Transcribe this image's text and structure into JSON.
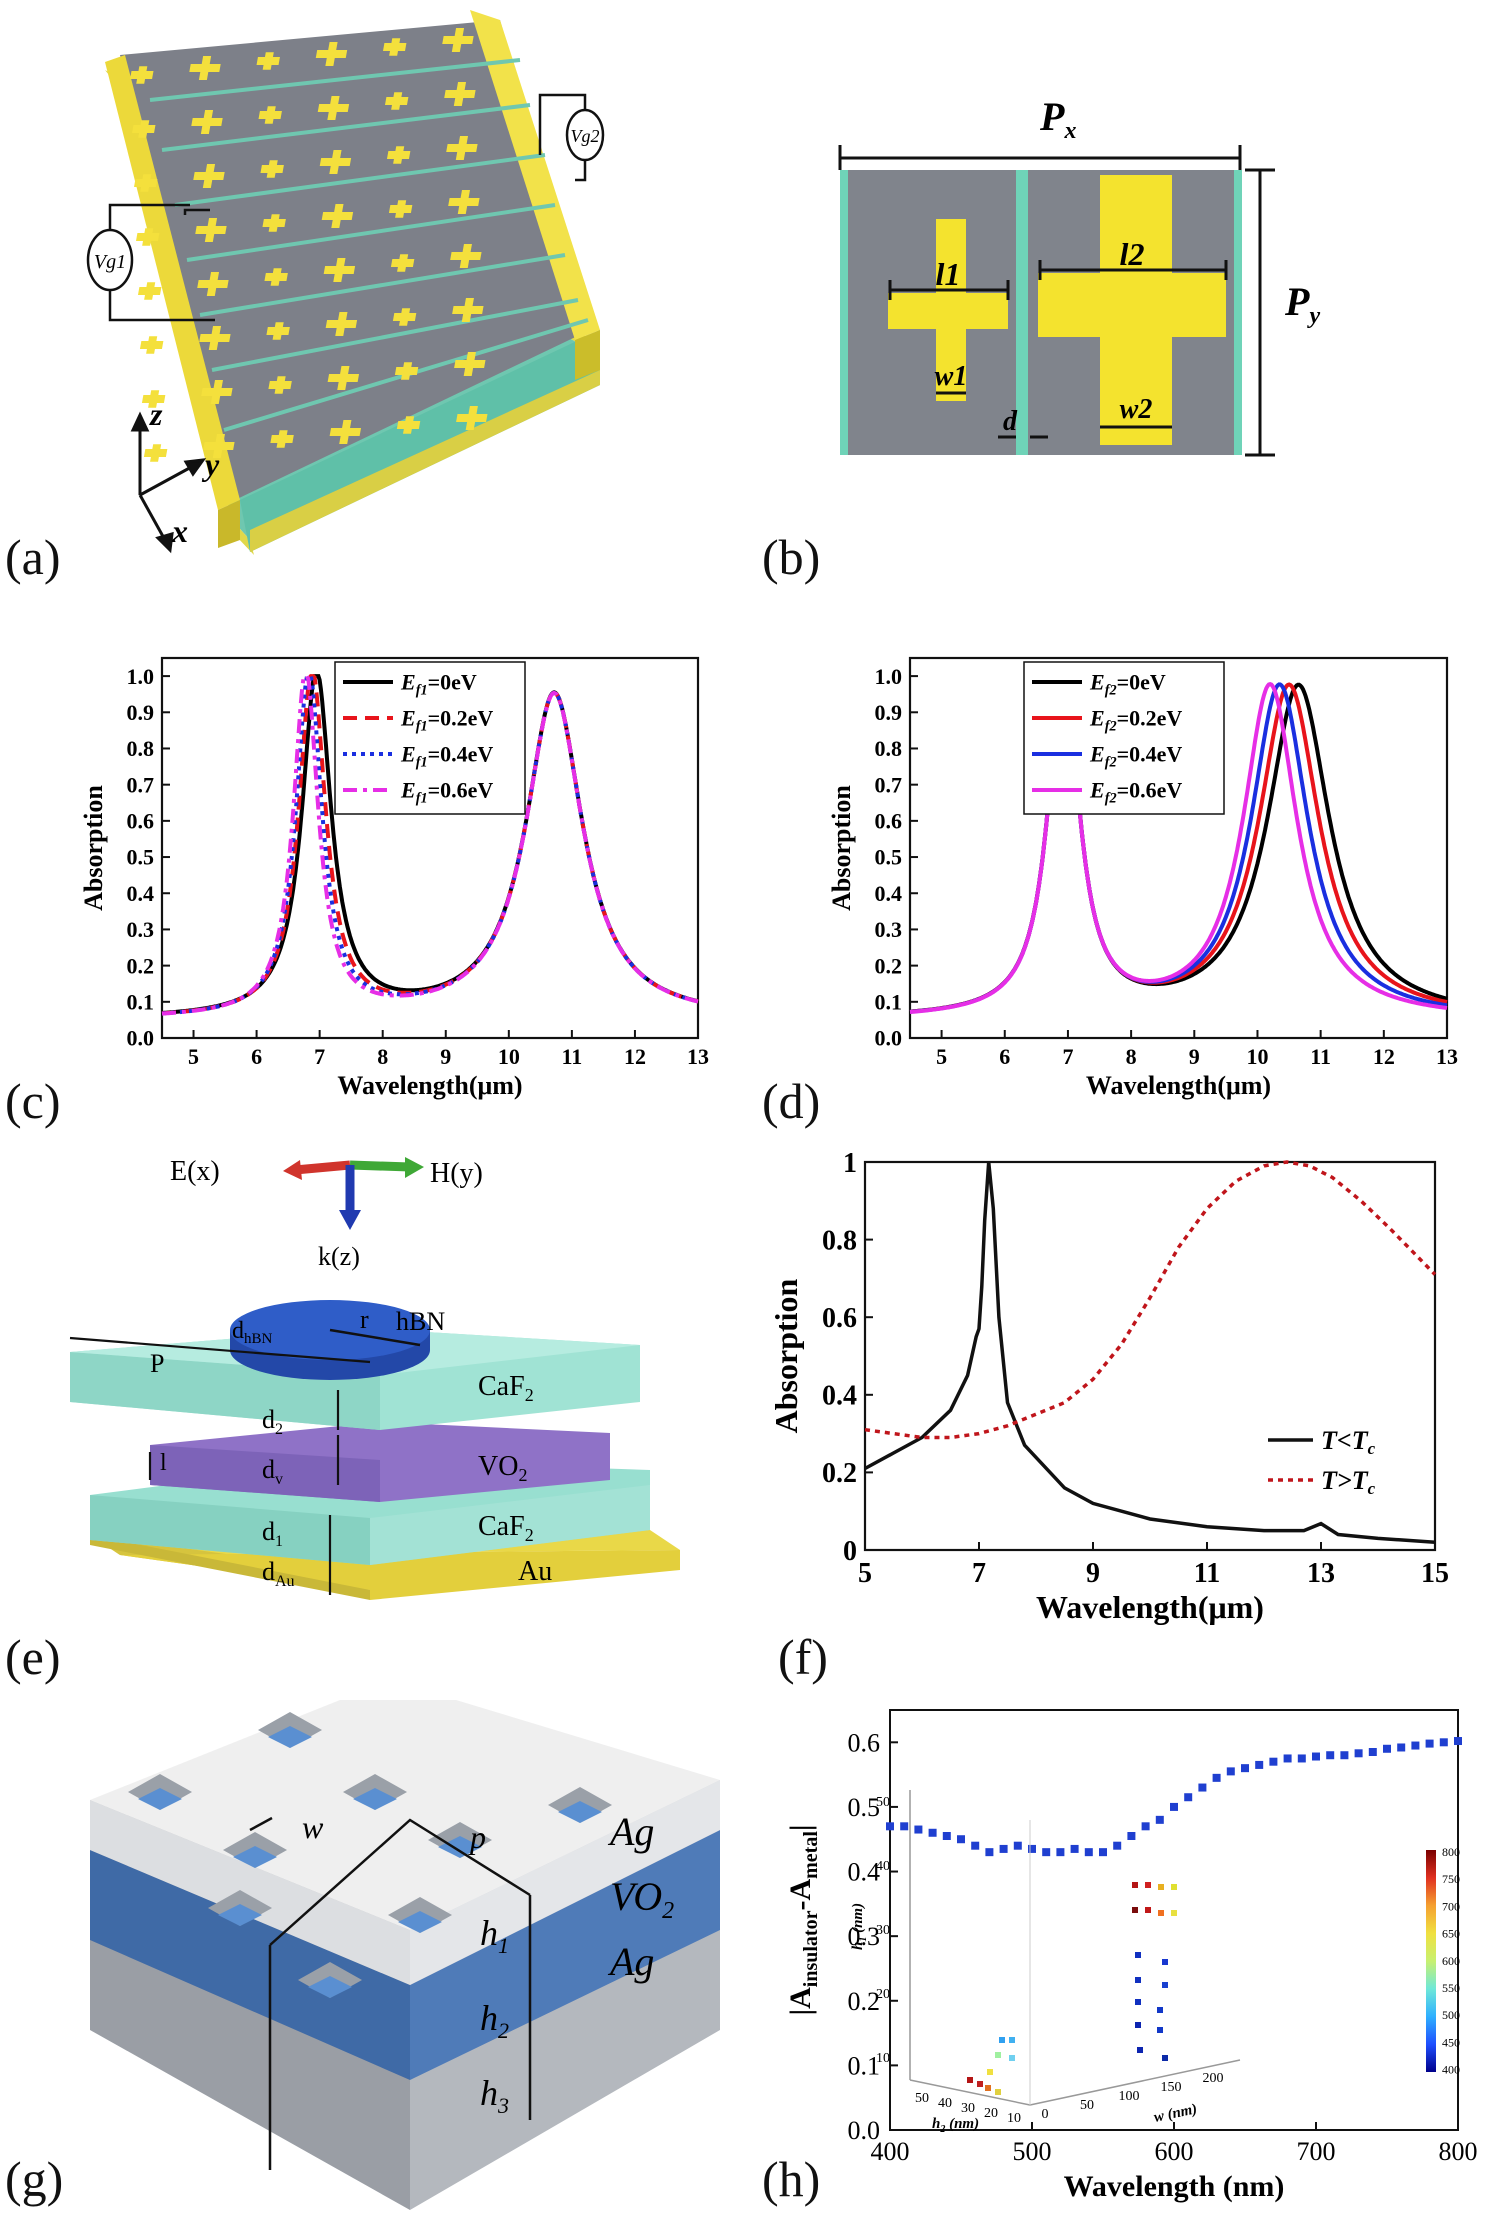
{
  "panels": {
    "a": {
      "label": "(a)",
      "vg_left": "Vg1",
      "vg_right": "Vg2",
      "axis_z": "z",
      "axis_y": "y",
      "axis_x": "x"
    },
    "b": {
      "label": "(b)",
      "px": "P",
      "px_sub": "x",
      "py": "P",
      "py_sub": "y",
      "l1": "l1",
      "l2": "l2",
      "w1": "w1",
      "w2": "w2",
      "d": "d"
    },
    "c": {
      "label": "(c)"
    },
    "d": {
      "label": "(d)"
    },
    "e": {
      "label": "(e)",
      "ex": "E(x)",
      "hy": "H(y)",
      "kz": "k(z)",
      "r": "r",
      "hbn": "hBN",
      "dhbn": "d",
      "dhbn_sub": "hBN",
      "p": "P",
      "l": "l",
      "caf2_top": "CaF",
      "caf2_bot": "CaF",
      "sub2": "2",
      "vo2": "VO",
      "au": "Au",
      "d2": "d",
      "d2_sub": "2",
      "dv": "d",
      "dv_sub": "v",
      "d1": "d",
      "d1_sub": "1",
      "dau": "d",
      "dau_sub": "Au"
    },
    "f": {
      "label": "(f)"
    },
    "g": {
      "label": "(g)",
      "w": "w",
      "p": "p",
      "ag_top": "Ag",
      "vo2": "VO",
      "vo2_sub": "2",
      "ag_bot": "Ag",
      "h1": "h",
      "h1_sub": "1",
      "h2": "h",
      "h2_sub": "2",
      "h3": "h",
      "h3_sub": "3"
    },
    "h": {
      "label": "(h)"
    }
  },
  "chart_data": [
    {
      "id": "c",
      "type": "line",
      "xlabel": "Wavelength(μm)",
      "ylabel": "Absorption",
      "xlim": [
        4.5,
        13
      ],
      "ylim": [
        0,
        1.05
      ],
      "xticks": [
        5,
        6,
        7,
        8,
        9,
        10,
        11,
        12,
        13
      ],
      "yticks": [
        "0.0",
        "0.1",
        "0.2",
        "0.3",
        "0.4",
        "0.5",
        "0.6",
        "0.7",
        "0.8",
        "0.9",
        "1.0"
      ],
      "series": [
        {
          "name": "E",
          "sub": "f1",
          "suffix": "=0eV",
          "color": "#000000",
          "dash": "",
          "peaks": [
            [
              6.95,
              0.95,
              0.28
            ],
            [
              10.72,
              0.9,
              0.55
            ]
          ],
          "base": 0.05
        },
        {
          "name": "E",
          "sub": "f1",
          "suffix": "=0.2eV",
          "color": "#e8141b",
          "dash": "14 8",
          "peaks": [
            [
              6.88,
              0.95,
              0.26
            ],
            [
              10.72,
              0.9,
              0.55
            ]
          ],
          "base": 0.05
        },
        {
          "name": "E",
          "sub": "f1",
          "suffix": "=0.4eV",
          "color": "#1a2fe0",
          "dash": "4 5",
          "peaks": [
            [
              6.83,
              0.95,
              0.25
            ],
            [
              10.72,
              0.9,
              0.55
            ]
          ],
          "base": 0.05
        },
        {
          "name": "E",
          "sub": "f1",
          "suffix": "=0.6eV",
          "color": "#e62ee6",
          "dash": "14 6 4 6",
          "peaks": [
            [
              6.78,
              0.95,
              0.24
            ],
            [
              10.72,
              0.9,
              0.55
            ]
          ],
          "base": 0.05
        }
      ]
    },
    {
      "id": "d",
      "type": "line",
      "xlabel": "Wavelength(μm)",
      "ylabel": "Absorption",
      "xlim": [
        4.5,
        13
      ],
      "ylim": [
        0,
        1.05
      ],
      "xticks": [
        5,
        6,
        7,
        8,
        9,
        10,
        11,
        12,
        13
      ],
      "yticks": [
        "0.0",
        "0.1",
        "0.2",
        "0.3",
        "0.4",
        "0.5",
        "0.6",
        "0.7",
        "0.8",
        "0.9",
        "1.0"
      ],
      "series": [
        {
          "name": "E",
          "sub": "f2",
          "suffix": "=0eV",
          "color": "#000000",
          "dash": "",
          "peaks": [
            [
              6.93,
              0.95,
              0.3
            ],
            [
              10.65,
              0.92,
              0.6
            ]
          ],
          "base": 0.05
        },
        {
          "name": "E",
          "sub": "f2",
          "suffix": "=0.2eV",
          "color": "#e8141b",
          "dash": "",
          "peaks": [
            [
              6.93,
              0.95,
              0.3
            ],
            [
              10.5,
              0.92,
              0.58
            ]
          ],
          "base": 0.05
        },
        {
          "name": "E",
          "sub": "f2",
          "suffix": "=0.4eV",
          "color": "#1a2fe0",
          "dash": "",
          "peaks": [
            [
              6.93,
              0.95,
              0.3
            ],
            [
              10.35,
              0.92,
              0.55
            ]
          ],
          "base": 0.05
        },
        {
          "name": "E",
          "sub": "f2",
          "suffix": "=0.6eV",
          "color": "#e62ee6",
          "dash": "",
          "peaks": [
            [
              6.93,
              0.95,
              0.3
            ],
            [
              10.2,
              0.92,
              0.52
            ]
          ],
          "base": 0.05
        }
      ]
    },
    {
      "id": "f",
      "type": "line",
      "xlabel": "Wavelength(μm)",
      "ylabel": "Absorption",
      "xlim": [
        5,
        15
      ],
      "ylim": [
        0,
        1
      ],
      "xticks": [
        5,
        7,
        9,
        11,
        13,
        15
      ],
      "yticks": [
        "0",
        "0.2",
        "0.4",
        "0.6",
        "0.8",
        "1"
      ],
      "series": [
        {
          "name": "T<T",
          "sub": "c",
          "suffix": "",
          "color": "#111111",
          "dash": "",
          "points": [
            [
              5,
              0.21
            ],
            [
              5.5,
              0.25
            ],
            [
              6,
              0.29
            ],
            [
              6.5,
              0.36
            ],
            [
              6.8,
              0.45
            ],
            [
              6.95,
              0.55
            ],
            [
              7.0,
              0.57
            ],
            [
              7.05,
              0.68
            ],
            [
              7.1,
              0.85
            ],
            [
              7.17,
              1.0
            ],
            [
              7.25,
              0.88
            ],
            [
              7.35,
              0.6
            ],
            [
              7.5,
              0.38
            ],
            [
              7.8,
              0.27
            ],
            [
              8.5,
              0.16
            ],
            [
              9,
              0.12
            ],
            [
              10,
              0.08
            ],
            [
              11,
              0.06
            ],
            [
              12,
              0.05
            ],
            [
              12.7,
              0.05
            ],
            [
              13.0,
              0.068
            ],
            [
              13.3,
              0.04
            ],
            [
              14,
              0.03
            ],
            [
              15,
              0.02
            ]
          ]
        },
        {
          "name": "T>T",
          "sub": "c",
          "suffix": "",
          "color": "#c0151b",
          "dash": "5 5",
          "points": [
            [
              5,
              0.31
            ],
            [
              5.5,
              0.3
            ],
            [
              6,
              0.29
            ],
            [
              6.5,
              0.29
            ],
            [
              7,
              0.3
            ],
            [
              7.5,
              0.32
            ],
            [
              8,
              0.35
            ],
            [
              8.5,
              0.38
            ],
            [
              9,
              0.44
            ],
            [
              9.5,
              0.53
            ],
            [
              10,
              0.65
            ],
            [
              10.5,
              0.78
            ],
            [
              11,
              0.88
            ],
            [
              11.5,
              0.95
            ],
            [
              12,
              0.99
            ],
            [
              12.4,
              1.0
            ],
            [
              12.8,
              0.99
            ],
            [
              13.2,
              0.96
            ],
            [
              13.7,
              0.9
            ],
            [
              14.2,
              0.83
            ],
            [
              14.6,
              0.77
            ],
            [
              15,
              0.71
            ]
          ]
        }
      ]
    },
    {
      "id": "h",
      "type": "scatter",
      "xlabel": "Wavelength (nm)",
      "ylabel": "|A",
      "ylabel_sub1": "insulator",
      "ylabel_mid": "-A",
      "ylabel_sub2": "metal",
      "ylabel_end": "|",
      "xlim": [
        400,
        800
      ],
      "ylim": [
        0,
        0.65
      ],
      "xticks": [
        400,
        500,
        600,
        700,
        800
      ],
      "yticks": [
        "0.0",
        "0.1",
        "0.2",
        "0.3",
        "0.4",
        "0.5",
        "0.6"
      ],
      "color": "#1f3fd0",
      "points": [
        [
          400,
          0.47
        ],
        [
          410,
          0.47
        ],
        [
          420,
          0.465
        ],
        [
          430,
          0.46
        ],
        [
          440,
          0.455
        ],
        [
          450,
          0.45
        ],
        [
          460,
          0.44
        ],
        [
          470,
          0.43
        ],
        [
          480,
          0.435
        ],
        [
          490,
          0.44
        ],
        [
          500,
          0.435
        ],
        [
          510,
          0.43
        ],
        [
          520,
          0.43
        ],
        [
          530,
          0.435
        ],
        [
          540,
          0.43
        ],
        [
          550,
          0.43
        ],
        [
          560,
          0.44
        ],
        [
          570,
          0.455
        ],
        [
          580,
          0.47
        ],
        [
          590,
          0.48
        ],
        [
          600,
          0.5
        ],
        [
          610,
          0.515
        ],
        [
          620,
          0.53
        ],
        [
          630,
          0.545
        ],
        [
          640,
          0.555
        ],
        [
          650,
          0.56
        ],
        [
          660,
          0.565
        ],
        [
          670,
          0.57
        ],
        [
          680,
          0.575
        ],
        [
          690,
          0.575
        ],
        [
          700,
          0.578
        ],
        [
          710,
          0.58
        ],
        [
          720,
          0.58
        ],
        [
          730,
          0.583
        ],
        [
          740,
          0.585
        ],
        [
          750,
          0.59
        ],
        [
          760,
          0.592
        ],
        [
          770,
          0.595
        ],
        [
          780,
          0.598
        ],
        [
          790,
          0.6
        ],
        [
          800,
          0.602
        ]
      ],
      "inset": {
        "zlabel": "h",
        "zlabel_sub": "1",
        "zlabel_unit": " (nm)",
        "xlabel": "h",
        "xlabel_sub": "2",
        "xlabel_unit": " (nm)",
        "ylabel": "w",
        "ylabel_unit": " (nm)",
        "zticks": [
          "10",
          "20",
          "30",
          "40",
          "50"
        ],
        "h2ticks": [
          "50",
          "40",
          "30",
          "20",
          "10"
        ],
        "wticks": [
          "0",
          "50",
          "100",
          "150",
          "200"
        ],
        "cbar_ticks": [
          "800",
          "750",
          "700",
          "650",
          "600",
          "550",
          "500",
          "450",
          "400"
        ]
      }
    }
  ]
}
